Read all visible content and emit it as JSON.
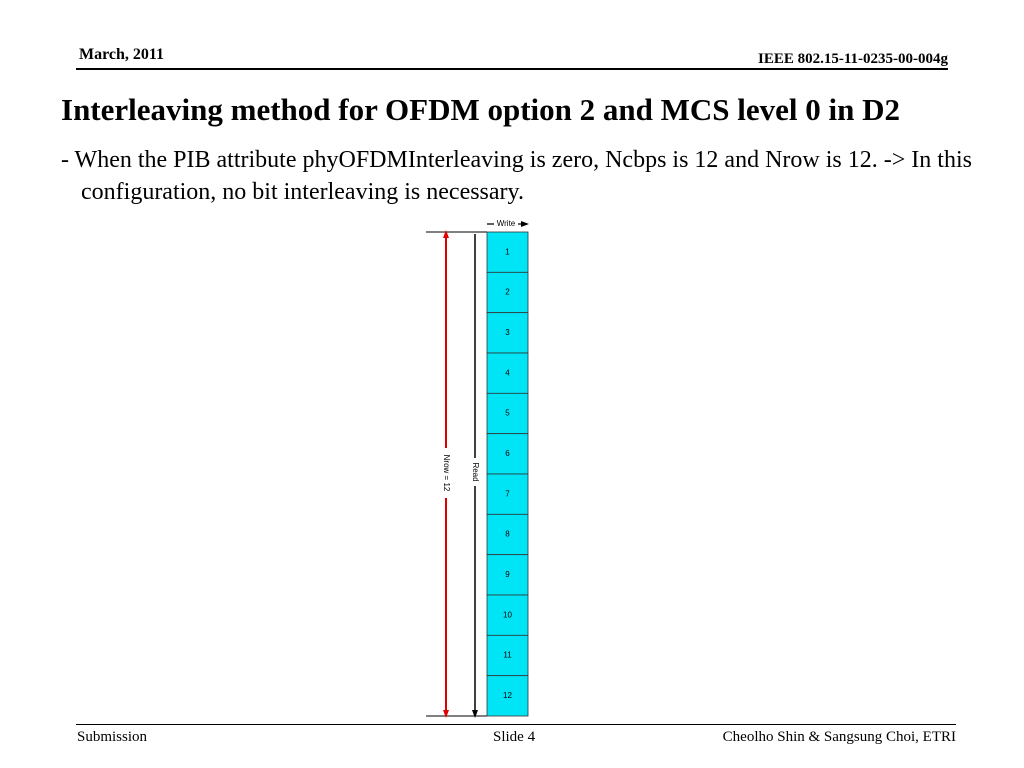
{
  "header": {
    "date": "March,  2011",
    "doc_id": "IEEE 802.15-11-0235-00-004g"
  },
  "slide": {
    "title": "Interleaving method for OFDM option 2 and MCS level 0 in D2",
    "body": "- When the PIB attribute phyOFDMInterleaving is zero, Ncbps is 12 and Nrow is 12.   -> In this configuration, no bit interleaving is necessary."
  },
  "diagram": {
    "write_label": "Write",
    "read_label": "Read",
    "nrow_label": "Nrow = 12",
    "cell_color": "#00e5f5",
    "nrow_arrow_color": "#e00000",
    "cells": [
      "1",
      "2",
      "3",
      "4",
      "5",
      "6",
      "7",
      "8",
      "9",
      "10",
      "11",
      "12"
    ]
  },
  "footer": {
    "left": "Submission",
    "center": "Slide 4",
    "right": "Cheolho Shin & Sangsung Choi, ETRI"
  }
}
